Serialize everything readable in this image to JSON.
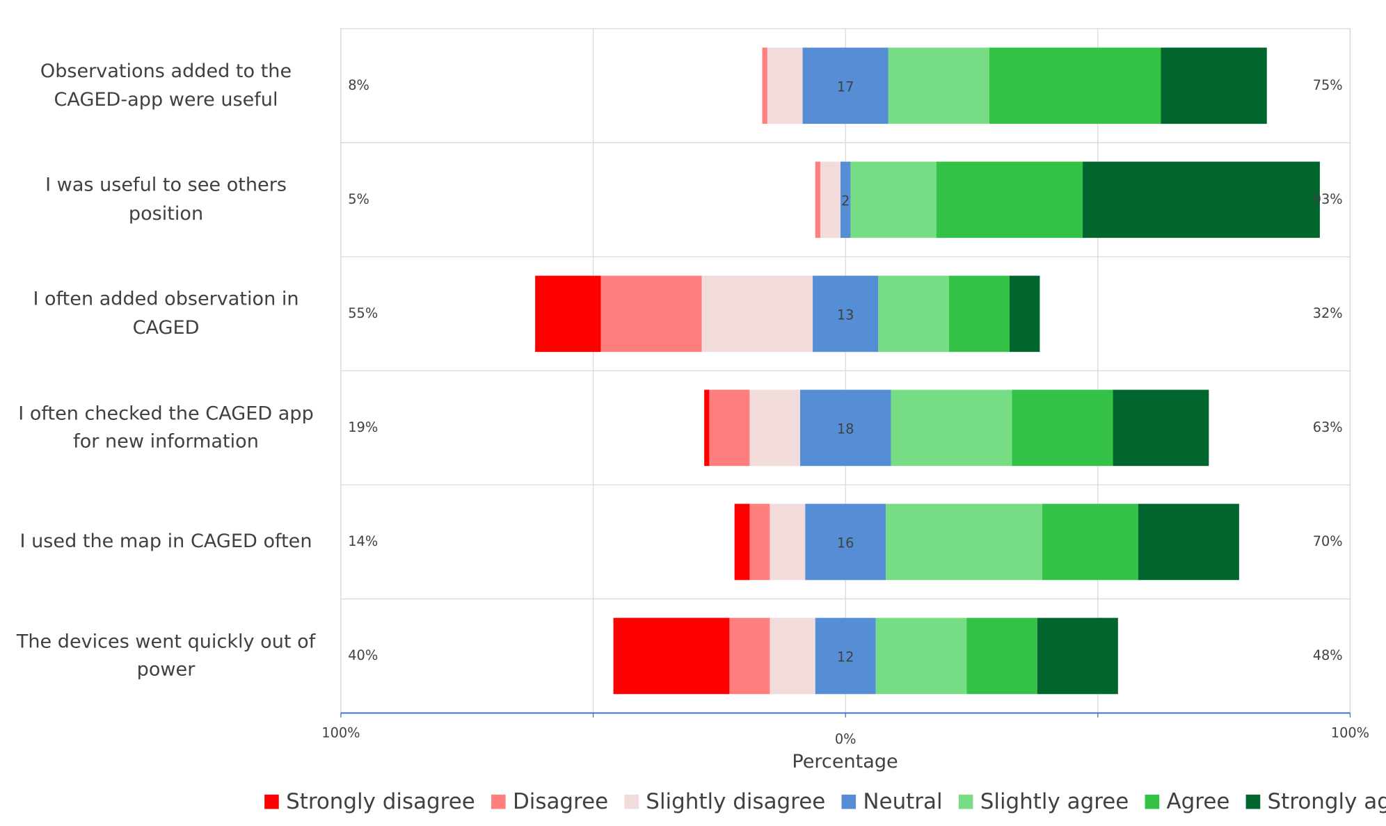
{
  "chart_data": {
    "type": "diverging_bar",
    "categories": [
      "Observations added to the CAGED-app were useful",
      "I was useful to see others position",
      "I often added observation in CAGED",
      "I often checked the CAGED app for new information",
      "I used the map in CAGED often",
      "The devices went quickly out of power"
    ],
    "series": [
      {
        "name": "Strongly disagree",
        "color": "#ff0000",
        "values": [
          0,
          0,
          13,
          1,
          3,
          23
        ]
      },
      {
        "name": "Disagree",
        "color": "#ff7f7f",
        "values": [
          1,
          1,
          20,
          8,
          4,
          8
        ]
      },
      {
        "name": "Slightly disagree",
        "color": "#f2dcdb",
        "values": [
          7,
          4,
          22,
          10,
          7,
          9
        ]
      },
      {
        "name": "Neutral",
        "color": "#558ed5",
        "values": [
          17,
          2,
          13,
          18,
          16,
          12
        ],
        "show_labels": true
      },
      {
        "name": "Slightly agree",
        "color": "#77dd85",
        "values": [
          20,
          17,
          14,
          24,
          31,
          18
        ]
      },
      {
        "name": "Agree",
        "color": "#33c245",
        "values": [
          34,
          29,
          12,
          20,
          19,
          14
        ]
      },
      {
        "name": "Strongly agree",
        "color": "#00662e",
        "values": [
          21,
          47,
          6,
          19,
          20,
          16
        ]
      }
    ],
    "totals": {
      "negative": {
        "values": [
          8,
          5,
          55,
          19,
          14,
          40
        ],
        "value_labels": [
          "8%",
          "5%",
          "55%",
          "19%",
          "14%",
          "40%"
        ]
      },
      "positive": {
        "values": [
          75,
          93,
          32,
          63,
          70,
          48
        ],
        "value_labels": [
          "75%",
          "93%",
          "32%",
          "63%",
          "70%",
          "48%"
        ]
      }
    },
    "xlabel": "Percentage",
    "xlim": [
      -100,
      100
    ],
    "xticks": [
      {
        "value": -100,
        "label": "100%"
      },
      {
        "value": 0,
        "label": "0%"
      },
      {
        "value": 100,
        "label": "100%"
      }
    ],
    "minor_xticks": [
      -50,
      50
    ],
    "grid": true,
    "legend": "bottom"
  }
}
